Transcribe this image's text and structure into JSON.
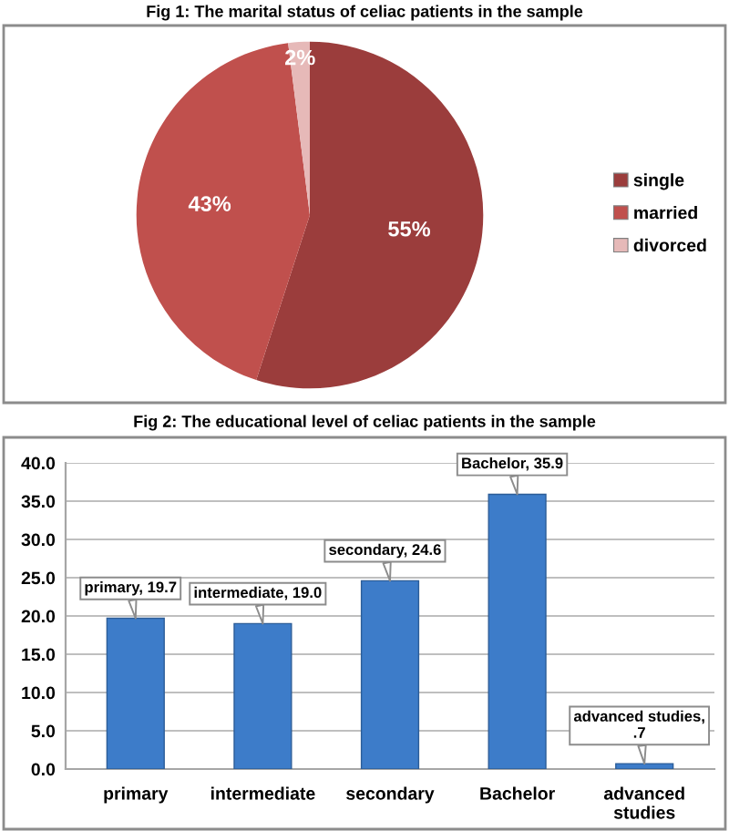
{
  "chart_data": [
    {
      "type": "pie",
      "title": "Fig 1: The marital status of celiac patients in the sample",
      "categories": [
        "single",
        "married",
        "divorced"
      ],
      "values": [
        55,
        43,
        2
      ],
      "colors": [
        "#9b3d3c",
        "#c0504d",
        "#e6b9b8"
      ],
      "value_labels": [
        "55%",
        "43%",
        "2%"
      ],
      "legend": "right"
    },
    {
      "type": "bar",
      "title": "Fig 2: The educational level of celiac patients in the sample",
      "categories": [
        "primary",
        "intermediate",
        "secondary",
        "Bachelor",
        "advanced\nstudies"
      ],
      "values": [
        19.7,
        19.0,
        24.6,
        35.9,
        0.7
      ],
      "color": "#3d7cc9",
      "value_labels": [
        "primary, 19.7",
        "intermediate, 19.0",
        "secondary, 24.6",
        "Bachelor, 35.9",
        "advanced studies,\n.7"
      ],
      "ylim": [
        0,
        40
      ],
      "yticks": [
        {
          "value": 0,
          "label": "0.0"
        },
        {
          "value": 5,
          "label": "5.0"
        },
        {
          "value": 10,
          "label": "10.0"
        },
        {
          "value": 15,
          "label": "15.0"
        },
        {
          "value": 20,
          "label": "20.0"
        },
        {
          "value": 25,
          "label": "25.0"
        },
        {
          "value": 30,
          "label": "30.0"
        },
        {
          "value": 35,
          "label": "35.0"
        },
        {
          "value": 40,
          "label": "40.0"
        }
      ],
      "grid": "y"
    }
  ]
}
